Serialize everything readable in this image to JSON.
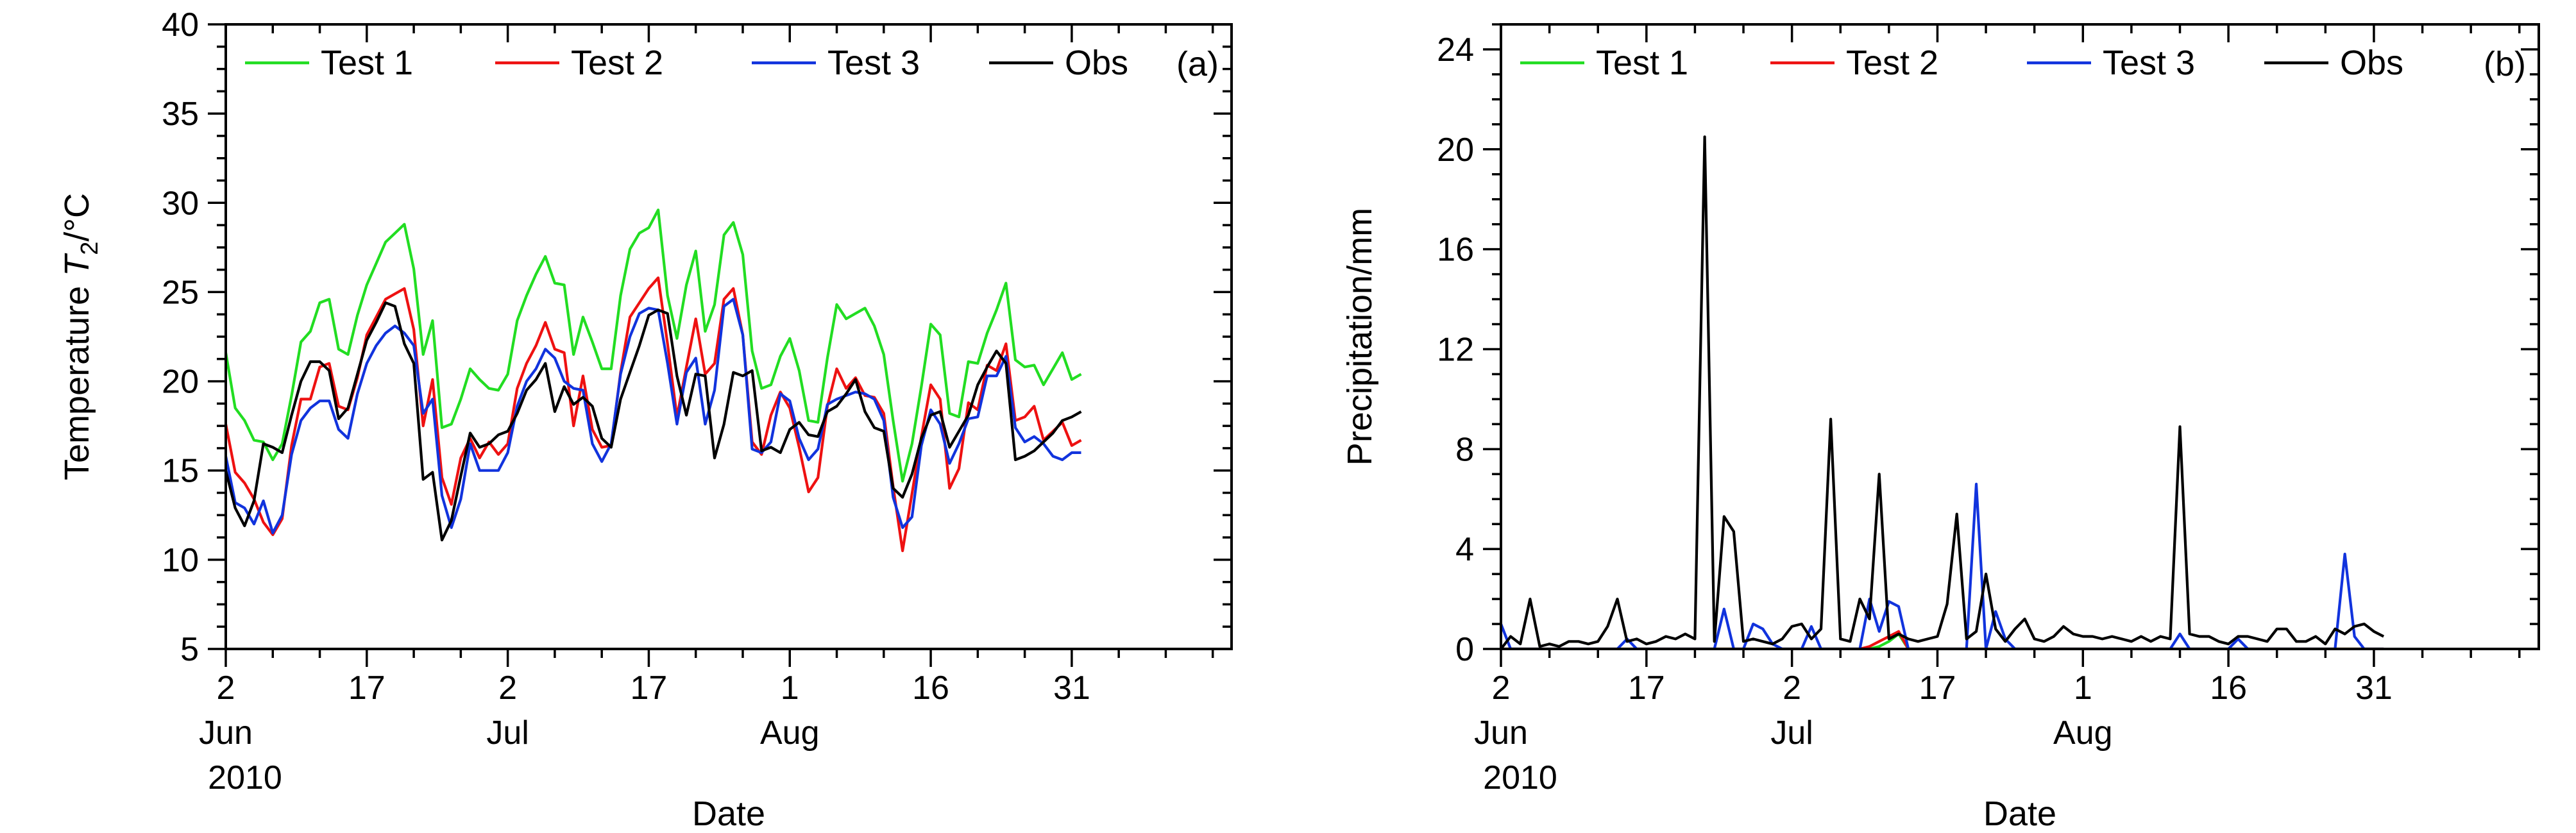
{
  "chart_data": [
    {
      "type": "line",
      "panel_label": "(a)",
      "title": "",
      "ylabel": "Temperature T2/°C",
      "ylabel_parts": {
        "pre": "Temperature ",
        "italic": "T",
        "sub": "2",
        "post": "/°C"
      },
      "xlabel": "Date",
      "ylim": [
        5,
        40
      ],
      "yticks": [
        5,
        10,
        15,
        20,
        25,
        30,
        35,
        40
      ],
      "xlim_days": [
        0,
        107
      ],
      "xtick_days": [
        0,
        15,
        30,
        45,
        60,
        75,
        90
      ],
      "xtick_labels": [
        "2",
        "17",
        "2",
        "17",
        "1",
        "16",
        "31"
      ],
      "month_labels": [
        {
          "day": 0,
          "text": "Jun"
        },
        {
          "day": 30,
          "text": "Jul"
        },
        {
          "day": 60,
          "text": "Aug"
        }
      ],
      "year_label": {
        "day": 0,
        "text": "2010"
      },
      "legend_position": "top",
      "series": [
        {
          "name": "Test 1",
          "color": "#22dd22",
          "values": [
            21.6,
            18.5,
            17.8,
            16.7,
            16.6,
            15.6,
            16.5,
            19.2,
            22.2,
            22.8,
            24.4,
            24.6,
            21.8,
            21.5,
            23.7,
            25.4,
            26.6,
            27.8,
            28.3,
            28.8,
            26.3,
            21.5,
            23.4,
            17.4,
            17.6,
            19,
            20.7,
            20.1,
            19.6,
            19.5,
            20.4,
            23.4,
            24.8,
            26,
            27,
            25.5,
            25.4,
            21.5,
            23.6,
            22.2,
            20.7,
            20.7,
            24.8,
            27.4,
            28.3,
            28.6,
            29.6,
            24.8,
            22.4,
            25.4,
            27.3,
            22.8,
            24.3,
            28.2,
            28.9,
            27.1,
            21.7,
            19.6,
            19.8,
            21.4,
            22.4,
            20.6,
            17.8,
            17.7,
            21.3,
            24.3,
            23.5,
            23.8,
            24.1,
            23.1,
            21.5,
            17.8,
            14.4,
            16.5,
            19.7,
            23.2,
            22.6,
            18.2,
            18,
            21.1,
            21,
            22.7,
            24,
            25.5,
            21.2,
            20.8,
            20.9,
            19.8,
            20.7,
            21.6,
            20.1,
            20.4
          ]
        },
        {
          "name": "Test 2",
          "color": "#ee1111",
          "values": [
            17.6,
            14.9,
            14.3,
            13.4,
            12.1,
            11.4,
            12.3,
            16.4,
            19,
            19,
            20.8,
            21,
            18.6,
            18.4,
            20.2,
            22.6,
            23.6,
            24.6,
            24.9,
            25.2,
            22.9,
            17.5,
            20.1,
            14.6,
            13.1,
            15.7,
            16.8,
            15.7,
            16.6,
            15.9,
            16.5,
            19.6,
            21,
            22,
            23.3,
            21.8,
            21.6,
            17.5,
            20.3,
            17.3,
            16.3,
            16.4,
            20.5,
            23.6,
            24.4,
            25.2,
            25.8,
            22.1,
            18,
            20.8,
            23.5,
            20.4,
            21,
            24.6,
            25.2,
            22.6,
            16.6,
            15.9,
            18.1,
            19.4,
            18.5,
            16.3,
            13.8,
            14.6,
            18.6,
            20.7,
            19.6,
            20.2,
            19.2,
            19.1,
            18.2,
            14.1,
            10.5,
            13.7,
            16.9,
            19.8,
            19,
            14,
            15.1,
            18.8,
            18.4,
            20.9,
            20.6,
            22.1,
            17.8,
            18,
            18.6,
            16.7,
            17.2,
            17.7,
            16.4,
            16.7
          ]
        },
        {
          "name": "Test 3",
          "color": "#1133dd",
          "values": [
            15.8,
            13.2,
            12.9,
            12,
            13.3,
            11.5,
            12.5,
            15.9,
            17.8,
            18.5,
            18.9,
            18.9,
            17.3,
            16.8,
            19.3,
            21,
            22,
            22.7,
            23.1,
            22.7,
            22,
            18.2,
            19,
            13.6,
            11.8,
            13.4,
            16.5,
            15,
            15,
            15,
            16,
            18.6,
            20,
            20.7,
            21.8,
            21.3,
            20,
            19.6,
            19.5,
            16.5,
            15.5,
            16.5,
            20.4,
            22.5,
            23.8,
            24.1,
            24,
            21,
            17.6,
            20.5,
            21.3,
            17.6,
            19.5,
            24.2,
            24.6,
            22.6,
            16.2,
            16,
            16.6,
            19.3,
            18.9,
            16.8,
            15.6,
            16.2,
            18.7,
            19,
            19.2,
            19.4,
            19.3,
            19,
            17.8,
            13.5,
            11.8,
            12.4,
            16.4,
            18.4,
            17.6,
            15.4,
            16.5,
            17.9,
            18,
            20.3,
            20.3,
            21.4,
            17.4,
            16.6,
            16.9,
            16.5,
            15.8,
            15.6,
            16,
            16
          ]
        },
        {
          "name": "Obs",
          "color": "#000000",
          "values": [
            15,
            12.9,
            11.9,
            13.3,
            16.5,
            16.3,
            16,
            18.1,
            20,
            21.1,
            21.1,
            20.6,
            17.9,
            18.5,
            20.4,
            22.3,
            23.3,
            24.4,
            24.2,
            22.1,
            21,
            14.5,
            14.9,
            11.1,
            12.2,
            14.7,
            17.1,
            16.3,
            16.5,
            17,
            17.2,
            18.2,
            19.5,
            20.1,
            21,
            18.3,
            19.7,
            18.7,
            19.1,
            18.6,
            16.8,
            16.3,
            19,
            20.5,
            22,
            23.7,
            24,
            23.8,
            20.3,
            18.1,
            20.4,
            20.3,
            15.7,
            17.6,
            20.5,
            20.3,
            20.6,
            16.1,
            16.3,
            16,
            17.3,
            17.7,
            17,
            16.9,
            18.3,
            18.6,
            19.3,
            20.1,
            18.3,
            17.4,
            17.2,
            14,
            13.5,
            14.8,
            16.8,
            18.1,
            18.3,
            16.3,
            17.2,
            18.1,
            19.8,
            20.8,
            21.7,
            21,
            15.6,
            15.8,
            16.1,
            16.6,
            17.1,
            17.8,
            18,
            18.3
          ]
        }
      ]
    },
    {
      "type": "line",
      "panel_label": "(b)",
      "title": "",
      "ylabel": "Precipitation/mm",
      "xlabel": "Date",
      "ylim": [
        0,
        25
      ],
      "yticks": [
        0,
        4,
        8,
        12,
        16,
        20,
        24
      ],
      "xlim_days": [
        0,
        107
      ],
      "xtick_days": [
        0,
        15,
        30,
        45,
        60,
        75,
        90
      ],
      "xtick_labels": [
        "2",
        "17",
        "2",
        "17",
        "1",
        "16",
        "31"
      ],
      "month_labels": [
        {
          "day": 0,
          "text": "Jun"
        },
        {
          "day": 30,
          "text": "Jul"
        },
        {
          "day": 60,
          "text": "Aug"
        }
      ],
      "year_label": {
        "day": 0,
        "text": "2010"
      },
      "legend_position": "top",
      "series": [
        {
          "name": "Test 1",
          "color": "#22dd22",
          "values": [
            0,
            0,
            0,
            0,
            0,
            0,
            0,
            0,
            0,
            0,
            0,
            0,
            0,
            0,
            0,
            0,
            0,
            0,
            0,
            0,
            0,
            0,
            0,
            0,
            0,
            0,
            0,
            0,
            0,
            0,
            0,
            0,
            0,
            0,
            0,
            0,
            0,
            0,
            0,
            0.1,
            0.3,
            0.6,
            0,
            0,
            0,
            0,
            0,
            0,
            0,
            0,
            0,
            0,
            0,
            0,
            0,
            0,
            0,
            0,
            0,
            0,
            0,
            0,
            0,
            0,
            0,
            0,
            0,
            0,
            0,
            0,
            0,
            0,
            0,
            0,
            0,
            0,
            0,
            0,
            0,
            0,
            0,
            0,
            0,
            0,
            0,
            0,
            0,
            0,
            0,
            0,
            0,
            0
          ]
        },
        {
          "name": "Test 2",
          "color": "#ee1111",
          "values": [
            0,
            0,
            0,
            0,
            0,
            0,
            0,
            0,
            0,
            0,
            0,
            0,
            0,
            0,
            0,
            0,
            0,
            0,
            0,
            0,
            0,
            0,
            0,
            0,
            0,
            0,
            0,
            0,
            0,
            0,
            0,
            0,
            0,
            0,
            0,
            0,
            0,
            0,
            0.1,
            0.3,
            0.5,
            0.7,
            0,
            0,
            0,
            0,
            0,
            0,
            0,
            0,
            0,
            0,
            0,
            0,
            0,
            0,
            0,
            0,
            0,
            0,
            0,
            0,
            0,
            0,
            0,
            0,
            0,
            0,
            0,
            0,
            0,
            0,
            0,
            0,
            0,
            0,
            0,
            0,
            0,
            0,
            0,
            0,
            0,
            0,
            0,
            0,
            0,
            0,
            0,
            0,
            0,
            0
          ]
        },
        {
          "name": "Test 3",
          "color": "#1133dd",
          "values": [
            1,
            0,
            0,
            0,
            0,
            0,
            0,
            0,
            0,
            0,
            0,
            0,
            0,
            0.4,
            0,
            0,
            0,
            0,
            0,
            0,
            0,
            0,
            0,
            1.6,
            0,
            0,
            1,
            0.8,
            0.2,
            0,
            0,
            0,
            0.9,
            0,
            0,
            0,
            0,
            0,
            2,
            0.7,
            1.9,
            1.7,
            0,
            0,
            0,
            0,
            0,
            0,
            0,
            6.6,
            0,
            1.5,
            0.4,
            0,
            0,
            0,
            0,
            0,
            0,
            0,
            0,
            0,
            0,
            0,
            0,
            0,
            0,
            0,
            0,
            0,
            0.6,
            0,
            0,
            0,
            0,
            0,
            0.4,
            0,
            0,
            0,
            0,
            0,
            0,
            0,
            0,
            0,
            0,
            3.8,
            0.5,
            0,
            0,
            0
          ]
        },
        {
          "name": "Obs",
          "color": "#000000",
          "values": [
            0,
            0.5,
            0.2,
            2,
            0.1,
            0.2,
            0.1,
            0.3,
            0.3,
            0.2,
            0.3,
            0.9,
            2,
            0.3,
            0.4,
            0.2,
            0.3,
            0.5,
            0.4,
            0.6,
            0.4,
            20.5,
            0.3,
            5.3,
            4.7,
            0.3,
            0.4,
            0.3,
            0.2,
            0.4,
            0.9,
            1,
            0.4,
            0.8,
            9.2,
            0.4,
            0.3,
            2,
            1.2,
            7,
            0.4,
            0.6,
            0.4,
            0.3,
            0.4,
            0.5,
            1.8,
            5.4,
            0.4,
            0.7,
            3,
            0.8,
            0.3,
            0.8,
            1.2,
            0.4,
            0.3,
            0.5,
            0.9,
            0.6,
            0.5,
            0.5,
            0.4,
            0.5,
            0.4,
            0.3,
            0.5,
            0.3,
            0.5,
            0.4,
            8.9,
            0.6,
            0.5,
            0.5,
            0.3,
            0.2,
            0.5,
            0.5,
            0.4,
            0.3,
            0.8,
            0.8,
            0.3,
            0.3,
            0.5,
            0.2,
            0.8,
            0.6,
            0.9,
            1,
            0.7,
            0.5
          ]
        }
      ]
    }
  ]
}
